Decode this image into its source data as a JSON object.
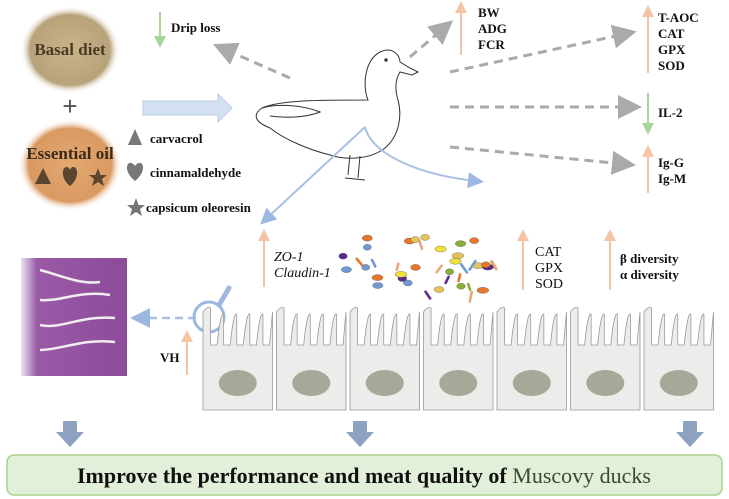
{
  "inputs": {
    "basal_diet": "Basal diet",
    "plus": "+",
    "essential_oil": "Essential oil",
    "components": [
      {
        "icon": "triangle-icon",
        "label": "carvacrol"
      },
      {
        "icon": "heart-icon",
        "label": "cinnamaldehyde"
      },
      {
        "icon": "star-icon",
        "label": "capsicum oleoresin"
      }
    ]
  },
  "effects": {
    "meat": {
      "direction": "down",
      "items": [
        "Drip loss"
      ]
    },
    "growth": {
      "direction": "up",
      "items": [
        "BW",
        "ADG",
        "FCR"
      ]
    },
    "antioxidant_serum": {
      "direction": "up",
      "items": [
        "T-AOC",
        "CAT",
        "GPX",
        "SOD"
      ]
    },
    "cytokine": {
      "direction": "down",
      "items": [
        "IL-2"
      ]
    },
    "immunoglobulin": {
      "direction": "up",
      "items": [
        "Ig-G",
        "Ig-M"
      ]
    },
    "tight_junction": {
      "direction": "up",
      "items": [
        "ZO-1",
        "Claudin-1"
      ]
    },
    "antioxidant_intestine": {
      "direction": "up",
      "items": [
        "CAT",
        "GPX",
        "SOD"
      ]
    },
    "microbiota": {
      "direction": "up",
      "items": [
        "β diversity",
        "α diversity"
      ]
    },
    "villus": {
      "direction": "up",
      "items": [
        "VH"
      ]
    }
  },
  "conclusion": {
    "text_prefix": "Improve the performance and meat quality of ",
    "text_highlight": "Muscovy ducks"
  },
  "colors": {
    "up_arrow": "#f6c4a4",
    "down_arrow": "#a8d59a",
    "dashed_arrow": "#aaaaaa",
    "flow_arrow": "#b7cce8",
    "banner_fill": "#e2f0d9",
    "banner_border": "#a9d18e",
    "highlight_text": "#3a4a2a"
  }
}
